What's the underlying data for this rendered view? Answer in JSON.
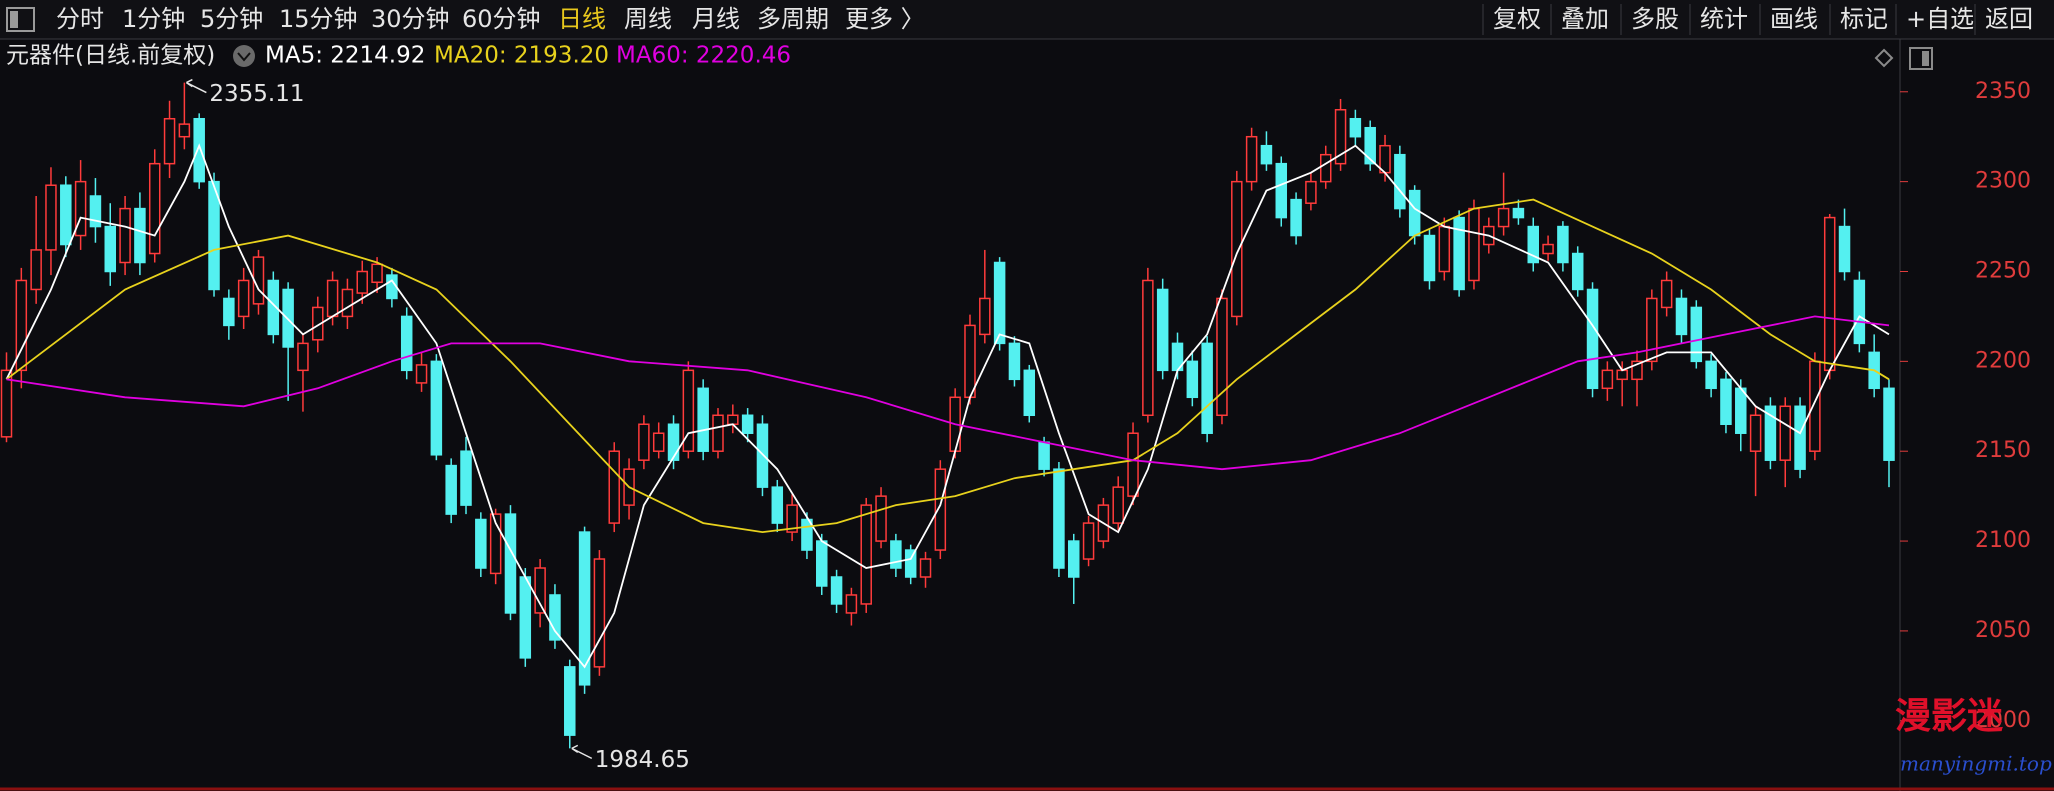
{
  "toolbar": {
    "left": [
      "分时",
      "1分钟",
      "5分钟",
      "15分钟",
      "30分钟",
      "60分钟",
      "日线",
      "周线",
      "月线",
      "多周期",
      "更多 〉"
    ],
    "active_index": 6,
    "right": [
      "复权",
      "叠加",
      "多股",
      "统计",
      "画线",
      "标记",
      "+自选",
      "返回"
    ]
  },
  "watermark": {
    "title": "漫影迷",
    "url": "manyingmi.top"
  },
  "chart_data": {
    "type": "candlestick",
    "title": "元器件(日线.前复权)",
    "up_color": "#ff3b3b",
    "down_color": "#54f0f0",
    "axis_color": "#e03c3c",
    "ylim": [
      1967.6,
      2377.7
    ],
    "yticks": [
      2000,
      2050,
      2100,
      2150,
      2200,
      2250,
      2300,
      2350
    ],
    "ohlc": [
      [
        2158,
        2205,
        2155,
        2195
      ],
      [
        2195,
        2252,
        2185,
        2245
      ],
      [
        2240,
        2292,
        2232,
        2262
      ],
      [
        2262,
        2308,
        2248,
        2298
      ],
      [
        2298,
        2303,
        2258,
        2265
      ],
      [
        2270,
        2312,
        2262,
        2300
      ],
      [
        2292,
        2302,
        2266,
        2275
      ],
      [
        2275,
        2288,
        2242,
        2250
      ],
      [
        2255,
        2292,
        2248,
        2285
      ],
      [
        2285,
        2294,
        2248,
        2255
      ],
      [
        2260,
        2318,
        2255,
        2310
      ],
      [
        2310,
        2345,
        2302,
        2335
      ],
      [
        2325,
        2355.11,
        2318,
        2332
      ],
      [
        2335,
        2338,
        2296,
        2300
      ],
      [
        2300,
        2305,
        2236,
        2240
      ],
      [
        2235,
        2240,
        2212,
        2220
      ],
      [
        2225,
        2252,
        2218,
        2245
      ],
      [
        2232,
        2262,
        2226,
        2258
      ],
      [
        2245,
        2250,
        2210,
        2215
      ],
      [
        2240,
        2244,
        2178,
        2208
      ],
      [
        2195,
        2215,
        2172,
        2210
      ],
      [
        2212,
        2236,
        2205,
        2230
      ],
      [
        2225,
        2250,
        2220,
        2245
      ],
      [
        2225,
        2246,
        2218,
        2240
      ],
      [
        2238,
        2256,
        2232,
        2250
      ],
      [
        2244,
        2258,
        2238,
        2254
      ],
      [
        2248,
        2252,
        2230,
        2235
      ],
      [
        2225,
        2230,
        2190,
        2195
      ],
      [
        2188,
        2205,
        2183,
        2198
      ],
      [
        2200,
        2204,
        2145,
        2148
      ],
      [
        2142,
        2146,
        2110,
        2115
      ],
      [
        2150,
        2158,
        2115,
        2120
      ],
      [
        2112,
        2116,
        2080,
        2085
      ],
      [
        2082,
        2118,
        2076,
        2115
      ],
      [
        2115,
        2120,
        2056,
        2060
      ],
      [
        2080,
        2085,
        2030,
        2035
      ],
      [
        2060,
        2090,
        2052,
        2085
      ],
      [
        2070,
        2076,
        2040,
        2045
      ],
      [
        2030,
        2034,
        1984.65,
        1992
      ],
      [
        2105,
        2108,
        2015,
        2020
      ],
      [
        2030,
        2095,
        2025,
        2090
      ],
      [
        2110,
        2155,
        2105,
        2150
      ],
      [
        2120,
        2146,
        2112,
        2140
      ],
      [
        2145,
        2170,
        2140,
        2165
      ],
      [
        2150,
        2166,
        2146,
        2160
      ],
      [
        2165,
        2170,
        2140,
        2145
      ],
      [
        2150,
        2200,
        2146,
        2195
      ],
      [
        2185,
        2190,
        2145,
        2150
      ],
      [
        2150,
        2174,
        2146,
        2170
      ],
      [
        2165,
        2176,
        2160,
        2170
      ],
      [
        2170,
        2174,
        2155,
        2160
      ],
      [
        2165,
        2170,
        2125,
        2130
      ],
      [
        2130,
        2134,
        2105,
        2110
      ],
      [
        2105,
        2126,
        2100,
        2120
      ],
      [
        2112,
        2116,
        2090,
        2095
      ],
      [
        2100,
        2104,
        2070,
        2075
      ],
      [
        2080,
        2084,
        2060,
        2065
      ],
      [
        2060,
        2074,
        2053,
        2070
      ],
      [
        2065,
        2124,
        2060,
        2120
      ],
      [
        2100,
        2130,
        2096,
        2125
      ],
      [
        2100,
        2104,
        2080,
        2085
      ],
      [
        2095,
        2098,
        2076,
        2080
      ],
      [
        2080,
        2094,
        2074,
        2090
      ],
      [
        2095,
        2145,
        2090,
        2140
      ],
      [
        2150,
        2185,
        2146,
        2180
      ],
      [
        2180,
        2226,
        2176,
        2220
      ],
      [
        2215,
        2262,
        2210,
        2235
      ],
      [
        2255,
        2258,
        2206,
        2210
      ],
      [
        2210,
        2214,
        2186,
        2190
      ],
      [
        2195,
        2198,
        2166,
        2170
      ],
      [
        2155,
        2158,
        2136,
        2140
      ],
      [
        2140,
        2144,
        2080,
        2085
      ],
      [
        2100,
        2104,
        2065,
        2080
      ],
      [
        2090,
        2114,
        2086,
        2110
      ],
      [
        2100,
        2124,
        2096,
        2120
      ],
      [
        2110,
        2136,
        2106,
        2130
      ],
      [
        2125,
        2166,
        2120,
        2160
      ],
      [
        2170,
        2252,
        2166,
        2245
      ],
      [
        2240,
        2246,
        2190,
        2195
      ],
      [
        2210,
        2216,
        2190,
        2195
      ],
      [
        2200,
        2206,
        2175,
        2180
      ],
      [
        2210,
        2214,
        2155,
        2160
      ],
      [
        2170,
        2240,
        2165,
        2235
      ],
      [
        2225,
        2306,
        2220,
        2300
      ],
      [
        2300,
        2330,
        2295,
        2325
      ],
      [
        2320,
        2328,
        2306,
        2310
      ],
      [
        2310,
        2314,
        2275,
        2280
      ],
      [
        2290,
        2294,
        2265,
        2270
      ],
      [
        2288,
        2305,
        2284,
        2300
      ],
      [
        2300,
        2320,
        2296,
        2315
      ],
      [
        2310,
        2346,
        2306,
        2340
      ],
      [
        2335,
        2340,
        2320,
        2325
      ],
      [
        2330,
        2334,
        2306,
        2310
      ],
      [
        2305,
        2326,
        2300,
        2320
      ],
      [
        2315,
        2320,
        2280,
        2285
      ],
      [
        2295,
        2298,
        2265,
        2270
      ],
      [
        2270,
        2274,
        2240,
        2245
      ],
      [
        2250,
        2280,
        2245,
        2275
      ],
      [
        2280,
        2284,
        2236,
        2240
      ],
      [
        2245,
        2290,
        2240,
        2285
      ],
      [
        2265,
        2280,
        2260,
        2275
      ],
      [
        2275,
        2305,
        2270,
        2285
      ],
      [
        2285,
        2290,
        2276,
        2280
      ],
      [
        2275,
        2280,
        2250,
        2255
      ],
      [
        2260,
        2270,
        2256,
        2265
      ],
      [
        2275,
        2278,
        2250,
        2255
      ],
      [
        2260,
        2264,
        2236,
        2240
      ],
      [
        2240,
        2244,
        2180,
        2185
      ],
      [
        2185,
        2200,
        2178,
        2195
      ],
      [
        2190,
        2200,
        2175,
        2195
      ],
      [
        2190,
        2206,
        2175,
        2200
      ],
      [
        2200,
        2240,
        2195,
        2235
      ],
      [
        2230,
        2250,
        2225,
        2245
      ],
      [
        2235,
        2240,
        2210,
        2215
      ],
      [
        2230,
        2234,
        2196,
        2200
      ],
      [
        2200,
        2204,
        2180,
        2185
      ],
      [
        2190,
        2194,
        2160,
        2165
      ],
      [
        2185,
        2190,
        2150,
        2160
      ],
      [
        2150,
        2175,
        2125,
        2170
      ],
      [
        2175,
        2180,
        2140,
        2145
      ],
      [
        2145,
        2180,
        2130,
        2175
      ],
      [
        2175,
        2180,
        2135,
        2140
      ],
      [
        2150,
        2205,
        2145,
        2200
      ],
      [
        2195,
        2282,
        2190,
        2280
      ],
      [
        2275,
        2285,
        2245,
        2250
      ],
      [
        2245,
        2250,
        2205,
        2210
      ],
      [
        2205,
        2215,
        2180,
        2185
      ],
      [
        2185,
        2190,
        2130,
        2145
      ]
    ],
    "series": [
      {
        "name": "MA5: 2214.92",
        "color": "#ffffff",
        "x": [
          0,
          3,
          5,
          8,
          10,
          12,
          13,
          15,
          17,
          20,
          23,
          26,
          29,
          31,
          33,
          35,
          37,
          39,
          41,
          43,
          46,
          49,
          52,
          55,
          58,
          61,
          63,
          65,
          67,
          69,
          71,
          73,
          75,
          77,
          79,
          81,
          83,
          85,
          88,
          91,
          93,
          95,
          97,
          100,
          104,
          107,
          109,
          112,
          115,
          118,
          121,
          123,
          125,
          127
        ],
        "values": [
          2190,
          2240,
          2280,
          2275,
          2270,
          2300,
          2320,
          2275,
          2240,
          2215,
          2230,
          2245,
          2210,
          2160,
          2110,
          2080,
          2050,
          2030,
          2060,
          2120,
          2160,
          2165,
          2140,
          2100,
          2085,
          2090,
          2120,
          2180,
          2215,
          2210,
          2160,
          2115,
          2105,
          2140,
          2195,
          2215,
          2260,
          2295,
          2305,
          2320,
          2305,
          2285,
          2275,
          2270,
          2255,
          2220,
          2195,
          2205,
          2205,
          2175,
          2160,
          2195,
          2225,
          2215
        ]
      },
      {
        "name": "MA20: 2193.20",
        "color": "#e8d21d",
        "x": [
          0,
          8,
          14,
          19,
          25,
          29,
          34,
          38,
          42,
          47,
          51,
          56,
          60,
          64,
          68,
          72,
          76,
          79,
          83,
          87,
          91,
          95,
          99,
          103,
          107,
          111,
          115,
          119,
          122,
          126,
          127
        ],
        "values": [
          2190,
          2240,
          2262,
          2270,
          2255,
          2240,
          2200,
          2165,
          2130,
          2110,
          2105,
          2110,
          2120,
          2125,
          2135,
          2140,
          2145,
          2160,
          2190,
          2215,
          2240,
          2270,
          2285,
          2290,
          2275,
          2260,
          2240,
          2215,
          2200,
          2195,
          2190
        ]
      },
      {
        "name": "MA60: 2220.46",
        "color": "#e000e0",
        "x": [
          0,
          8,
          16,
          21,
          26,
          30,
          36,
          42,
          50,
          58,
          64,
          70,
          76,
          82,
          88,
          94,
          100,
          106,
          110,
          116,
          122,
          127
        ],
        "values": [
          2190,
          2180,
          2175,
          2185,
          2200,
          2210,
          2210,
          2200,
          2195,
          2180,
          2165,
          2155,
          2145,
          2140,
          2145,
          2160,
          2180,
          2200,
          2205,
          2215,
          2225,
          2220
        ]
      }
    ]
  }
}
